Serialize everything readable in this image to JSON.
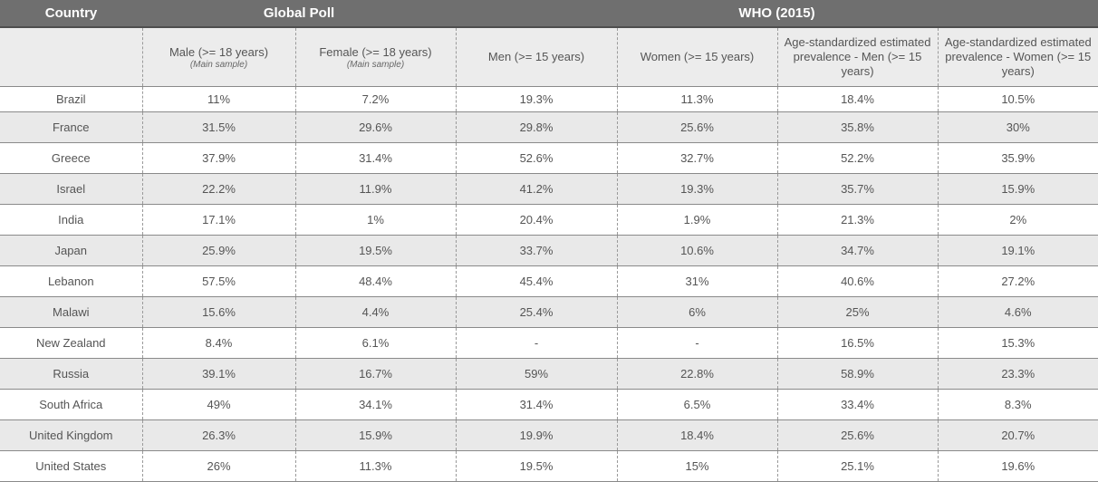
{
  "chart_data": {
    "type": "table",
    "group_headers": {
      "country": "Country",
      "global_poll": "Global Poll",
      "who": "WHO (2015)"
    },
    "columns": [
      {
        "label": "",
        "note": ""
      },
      {
        "label": "Male (>= 18 years)",
        "note": "(Main sample)"
      },
      {
        "label": "Female (>= 18 years)",
        "note": "(Main sample)"
      },
      {
        "label": "Men (>= 15 years)",
        "note": ""
      },
      {
        "label": "Women (>= 15 years)",
        "note": ""
      },
      {
        "label": "Age-standardized estimated prevalence  - Men (>= 15 years)",
        "note": ""
      },
      {
        "label": "Age-standardized estimated prevalence  - Women (>= 15 years)",
        "note": ""
      }
    ],
    "rows": [
      [
        "Brazil",
        "11%",
        "7.2%",
        "19.3%",
        "11.3%",
        "18.4%",
        "10.5%"
      ],
      [
        "France",
        "31.5%",
        "29.6%",
        "29.8%",
        "25.6%",
        "35.8%",
        "30%"
      ],
      [
        "Greece",
        "37.9%",
        "31.4%",
        "52.6%",
        "32.7%",
        "52.2%",
        "35.9%"
      ],
      [
        "Israel",
        "22.2%",
        "11.9%",
        "41.2%",
        "19.3%",
        "35.7%",
        "15.9%"
      ],
      [
        "India",
        "17.1%",
        "1%",
        "20.4%",
        "1.9%",
        "21.3%",
        "2%"
      ],
      [
        "Japan",
        "25.9%",
        "19.5%",
        "33.7%",
        "10.6%",
        "34.7%",
        "19.1%"
      ],
      [
        "Lebanon",
        "57.5%",
        "48.4%",
        "45.4%",
        "31%",
        "40.6%",
        "27.2%"
      ],
      [
        "Malawi",
        "15.6%",
        "4.4%",
        "25.4%",
        "6%",
        "25%",
        "4.6%"
      ],
      [
        "New Zealand",
        "8.4%",
        "6.1%",
        "-",
        "-",
        "16.5%",
        "15.3%"
      ],
      [
        "Russia",
        "39.1%",
        "16.7%",
        "59%",
        "22.8%",
        "58.9%",
        "23.3%"
      ],
      [
        "South Africa",
        "49%",
        "34.1%",
        "31.4%",
        "6.5%",
        "33.4%",
        "8.3%"
      ],
      [
        "United Kingdom",
        "26.3%",
        "15.9%",
        "19.9%",
        "18.4%",
        "25.6%",
        "20.7%"
      ],
      [
        "United States",
        "26%",
        "11.3%",
        "19.5%",
        "15%",
        "25.1%",
        "19.6%"
      ]
    ]
  }
}
